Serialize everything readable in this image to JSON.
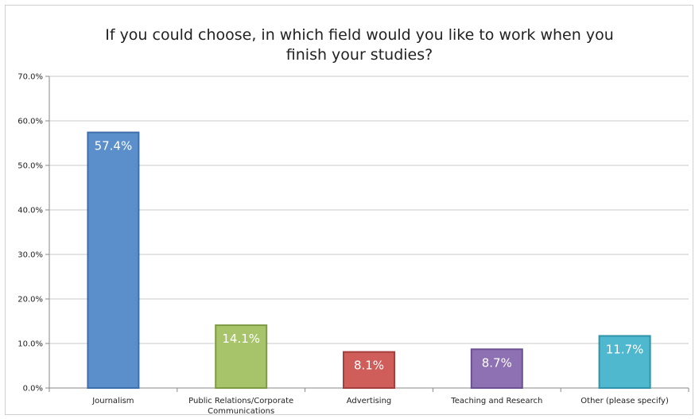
{
  "chart_data": {
    "type": "bar",
    "title": "If you could choose, in which field would you like to work when you finish your studies?",
    "title_lines": [
      "If you could choose, in which field would you like to work when you",
      "finish your studies?"
    ],
    "categories": [
      "Journalism",
      "Public Relations/Corporate Communications",
      "Advertising",
      "Teaching and Research",
      "Other (please specify)"
    ],
    "category_lines": [
      [
        "Journalism"
      ],
      [
        "Public Relations/Corporate",
        "Communications"
      ],
      [
        "Advertising"
      ],
      [
        "Teaching and Research"
      ],
      [
        "Other (please specify)"
      ]
    ],
    "values": [
      57.4,
      14.1,
      8.1,
      8.7,
      11.7
    ],
    "data_labels": [
      "57.4%",
      "14.1%",
      "8.1%",
      "8.7%",
      "11.7%"
    ],
    "colors": [
      "#5b8fcb",
      "#a8c46a",
      "#cf5e5a",
      "#8d71b3",
      "#4fb8cf"
    ],
    "border_colors": [
      "#3f6fa8",
      "#7f9a45",
      "#a3403d",
      "#6b5190",
      "#2f94aa"
    ],
    "yticks": [
      0,
      10,
      20,
      30,
      40,
      50,
      60,
      70
    ],
    "ytick_labels": [
      "0.0%",
      "10.0%",
      "20.0%",
      "30.0%",
      "40.0%",
      "50.0%",
      "60.0%",
      "70.0%"
    ],
    "ylim": [
      0,
      70
    ],
    "xlabel": "",
    "ylabel": "",
    "grid": true,
    "legend": "none"
  }
}
